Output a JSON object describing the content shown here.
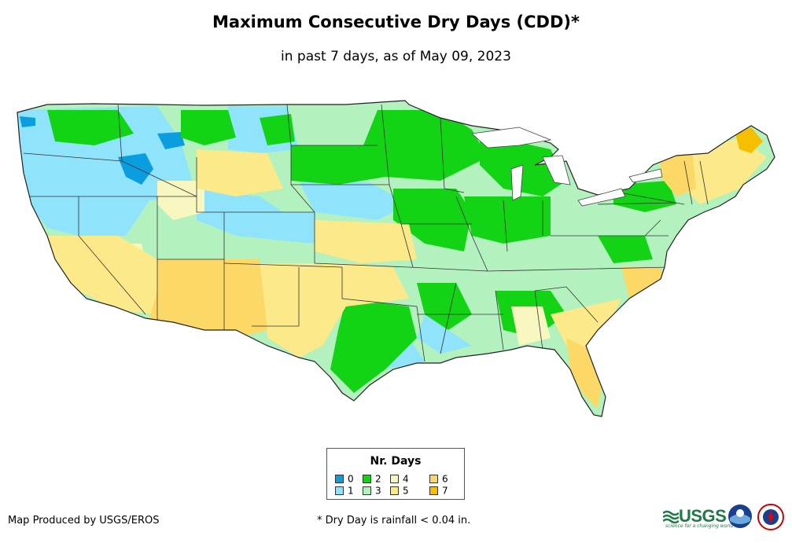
{
  "header": {
    "title": "Maximum Consecutive Dry Days (CDD)*",
    "subtitle": "in past 7 days, as of May 09, 2023"
  },
  "legend": {
    "title": "Nr. Days",
    "items": [
      {
        "label": "0",
        "color": "#0a9de0"
      },
      {
        "label": "1",
        "color": "#8fe3fb"
      },
      {
        "label": "2",
        "color": "#13d414"
      },
      {
        "label": "3",
        "color": "#b3f1bf"
      },
      {
        "label": "4",
        "color": "#f8f7c0"
      },
      {
        "label": "5",
        "color": "#fce98a"
      },
      {
        "label": "6",
        "color": "#fcd966"
      },
      {
        "label": "7",
        "color": "#f6be00"
      }
    ]
  },
  "footer": {
    "credit": "Map Produced by USGS/EROS",
    "note": "* Dry Day is rainfall < 0.04 in.",
    "usgs_logo": "USGS",
    "usgs_tagline": "science for a changing world",
    "logos": [
      "usgs-logo",
      "noaa-logo",
      "nws-logo"
    ]
  }
}
